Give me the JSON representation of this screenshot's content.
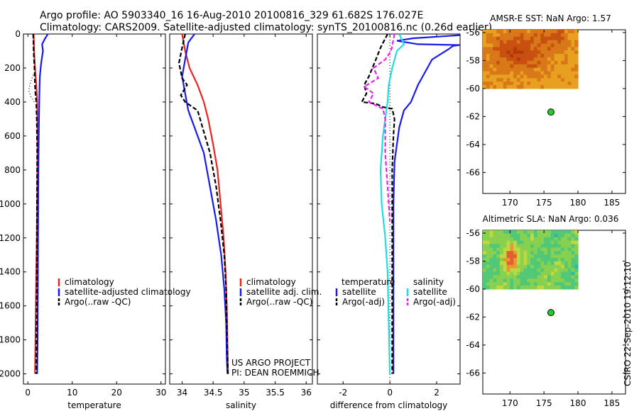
{
  "header": {
    "line1": "Argo profile: AO 5903340_16 16-Aug-2010 20100816_329 61.682S 176.027E",
    "line2": "Climatology: CARS2009. Satellite-adjusted climatology: synTS_20100816.nc (0.26d earlier)"
  },
  "colors": {
    "climatology": "#ee2222",
    "satellite": "#1a1aee",
    "argo": "#000000",
    "salinity_sat": "#22dddd",
    "salinity_argo": "#ee22ee",
    "marker": "#22cc22"
  },
  "side_label": "CSIRO 22-Sep-2010 19:12:10",
  "chart_data": [
    {
      "type": "line",
      "id": "temperature",
      "xlabel": "temperature",
      "xlim": [
        -1,
        31
      ],
      "ylim": [
        2060,
        0
      ],
      "xticks": [
        "0",
        "10",
        "20",
        "30"
      ],
      "xtick_values": [
        0,
        10,
        20,
        30
      ],
      "yticks": [
        "0",
        "200",
        "400",
        "600",
        "800",
        "1000",
        "1200",
        "1400",
        "1600",
        "1800",
        "2000"
      ],
      "ytick_values": [
        0,
        200,
        400,
        600,
        800,
        1000,
        1200,
        1400,
        1600,
        1800,
        2000
      ],
      "legend": [
        "climatology",
        "satellite-adjusted climatology",
        "Argo(..raw -QC)"
      ],
      "series": [
        {
          "name": "climatology",
          "color": "#ee2222",
          "dash": "",
          "points": [
            [
              1.3,
              0
            ],
            [
              1.4,
              100
            ],
            [
              1.6,
              200
            ],
            [
              1.9,
              300
            ],
            [
              2.1,
              400
            ],
            [
              2.2,
              600
            ],
            [
              2.15,
              800
            ],
            [
              2.1,
              1000
            ],
            [
              2.0,
              1200
            ],
            [
              1.9,
              1400
            ],
            [
              1.8,
              1600
            ],
            [
              1.7,
              1800
            ],
            [
              1.6,
              2000
            ]
          ]
        },
        {
          "name": "satellite-adjusted climatology",
          "color": "#1a1aee",
          "dash": "",
          "points": [
            [
              4.5,
              0
            ],
            [
              3.8,
              30
            ],
            [
              3.2,
              60
            ],
            [
              3.4,
              100
            ],
            [
              3.0,
              170
            ],
            [
              2.7,
              250
            ],
            [
              2.6,
              350
            ],
            [
              2.5,
              500
            ],
            [
              2.4,
              700
            ],
            [
              2.35,
              900
            ],
            [
              2.3,
              1200
            ],
            [
              2.25,
              1500
            ],
            [
              2.2,
              1800
            ],
            [
              2.1,
              2000
            ]
          ]
        },
        {
          "name": "Argo(..raw -QC)",
          "color": "#000000",
          "dash": "6,3",
          "points": [
            [
              1.2,
              0
            ],
            [
              1.3,
              100
            ],
            [
              1.5,
              200
            ],
            [
              1.6,
              300
            ],
            [
              1.7,
              350
            ],
            [
              1.9,
              400
            ],
            [
              2.0,
              500
            ],
            [
              2.1,
              700
            ],
            [
              2.05,
              1000
            ],
            [
              2.0,
              1400
            ],
            [
              1.95,
              1800
            ],
            [
              1.9,
              2000
            ]
          ]
        },
        {
          "name": "",
          "color": "#000000",
          "dash": "1,3",
          "points": [
            [
              1.2,
              240
            ],
            [
              0.4,
              300
            ],
            [
              0.2,
              335
            ],
            [
              0.7,
              370
            ],
            [
              1.4,
              400
            ]
          ]
        }
      ]
    },
    {
      "type": "line",
      "id": "salinity",
      "xlabel": "salinity",
      "xlim": [
        33.8,
        36.1
      ],
      "ylim": [
        2060,
        0
      ],
      "xticks": [
        "34",
        "34.5",
        "35",
        "35.5",
        "36"
      ],
      "xtick_values": [
        34,
        34.5,
        35,
        35.5,
        36
      ],
      "legend": [
        "climatology",
        "satellite adj. clim.",
        "Argo(..raw -QC)"
      ],
      "annotation": [
        "US ARGO PROJECT",
        "PI: DEAN ROEMMICH"
      ],
      "series": [
        {
          "name": "climatology",
          "color": "#ee2222",
          "dash": "",
          "points": [
            [
              34.0,
              0
            ],
            [
              34.05,
              100
            ],
            [
              34.12,
              200
            ],
            [
              34.25,
              300
            ],
            [
              34.35,
              400
            ],
            [
              34.42,
              500
            ],
            [
              34.5,
              650
            ],
            [
              34.57,
              800
            ],
            [
              34.62,
              1000
            ],
            [
              34.67,
              1200
            ],
            [
              34.7,
              1400
            ],
            [
              34.72,
              1600
            ],
            [
              34.73,
              1800
            ],
            [
              34.74,
              2000
            ]
          ]
        },
        {
          "name": "satellite adj. clim.",
          "color": "#1a1aee",
          "dash": "",
          "points": [
            [
              34.2,
              0
            ],
            [
              34.1,
              50
            ],
            [
              34.05,
              150
            ],
            [
              34.0,
              250
            ],
            [
              34.05,
              350
            ],
            [
              34.1,
              450
            ],
            [
              34.2,
              550
            ],
            [
              34.35,
              700
            ],
            [
              34.45,
              900
            ],
            [
              34.55,
              1100
            ],
            [
              34.63,
              1300
            ],
            [
              34.68,
              1500
            ],
            [
              34.71,
              1700
            ],
            [
              34.72,
              1900
            ],
            [
              34.73,
              2000
            ]
          ]
        },
        {
          "name": "Argo(..raw -QC)",
          "color": "#000000",
          "dash": "6,3",
          "points": [
            [
              34.05,
              0
            ],
            [
              34.0,
              80
            ],
            [
              33.95,
              170
            ],
            [
              34.0,
              260
            ],
            [
              34.08,
              300
            ],
            [
              33.98,
              360
            ],
            [
              34.05,
              400
            ],
            [
              34.25,
              450
            ],
            [
              34.33,
              550
            ],
            [
              34.45,
              700
            ],
            [
              34.55,
              900
            ],
            [
              34.62,
              1100
            ],
            [
              34.68,
              1300
            ],
            [
              34.71,
              1500
            ],
            [
              34.72,
              1700
            ],
            [
              34.73,
              1900
            ],
            [
              34.74,
              2000
            ]
          ]
        }
      ]
    },
    {
      "type": "line",
      "id": "difference",
      "xlabel": "difference from climatology",
      "xlim": [
        -3.1,
        3.0
      ],
      "ylim": [
        2060,
        0
      ],
      "xticks": [
        "-2",
        "0",
        "2"
      ],
      "xtick_values": [
        -2,
        0,
        2
      ],
      "legend_temperature_title": "temperature",
      "legend_salinity_title": "salinity",
      "legend_temperature": [
        "satellite",
        "Argo(-adj)"
      ],
      "legend_salinity": [
        "satellite",
        "Argo(-adj)"
      ],
      "zero_line": true,
      "series": [
        {
          "name": "temperature satellite",
          "color": "#1a1aee",
          "dash": "",
          "points": [
            [
              3.2,
              60
            ],
            [
              2.7,
              70
            ],
            [
              2.5,
              90
            ],
            [
              1.8,
              150
            ],
            [
              1.6,
              200
            ],
            [
              1.2,
              300
            ],
            [
              0.9,
              400
            ],
            [
              0.6,
              450
            ],
            [
              0.4,
              550
            ],
            [
              0.3,
              650
            ],
            [
              0.2,
              750
            ],
            [
              0.15,
              1000
            ],
            [
              0.15,
              1400
            ],
            [
              0.15,
              2000
            ]
          ]
        },
        {
          "name": "temperature satellite",
          "color": "#1a1aee",
          "dash": "",
          "points": [
            [
              3.2,
              5
            ],
            [
              1.0,
              25
            ],
            [
              0.3,
              40
            ],
            [
              1.2,
              60
            ],
            [
              3.0,
              65
            ]
          ]
        },
        {
          "name": "temperature Argo(-adj)",
          "color": "#000000",
          "dash": "6,3",
          "points": [
            [
              -0.1,
              0
            ],
            [
              -0.4,
              80
            ],
            [
              -0.6,
              150
            ],
            [
              -0.9,
              250
            ],
            [
              -1.1,
              300
            ],
            [
              -1.0,
              350
            ],
            [
              -1.2,
              400
            ],
            [
              -0.6,
              410
            ],
            [
              -0.3,
              430
            ],
            [
              0.1,
              440
            ],
            [
              0.2,
              500
            ],
            [
              0.15,
              600
            ],
            [
              0.1,
              800
            ],
            [
              0.1,
              1000
            ],
            [
              0.1,
              1400
            ],
            [
              0.1,
              2000
            ]
          ]
        },
        {
          "name": "salinity satellite",
          "color": "#22dddd",
          "dash": "",
          "points": [
            [
              0.4,
              0
            ],
            [
              0.6,
              60
            ],
            [
              0.3,
              100
            ],
            [
              0.1,
              200
            ],
            [
              -0.05,
              300
            ],
            [
              -0.1,
              400
            ],
            [
              -0.2,
              500
            ],
            [
              -0.3,
              600
            ],
            [
              -0.4,
              800
            ],
            [
              -0.35,
              1000
            ],
            [
              -0.2,
              1200
            ],
            [
              -0.1,
              1400
            ],
            [
              -0.05,
              1700
            ],
            [
              0.0,
              2000
            ]
          ]
        },
        {
          "name": "salinity Argo(-adj)",
          "color": "#ee22ee",
          "dash": "6,3",
          "points": [
            [
              0.2,
              0
            ],
            [
              0.05,
              100
            ],
            [
              -0.2,
              150
            ],
            [
              -0.7,
              200
            ],
            [
              -0.5,
              260
            ],
            [
              -1.1,
              310
            ],
            [
              -0.7,
              350
            ],
            [
              -0.9,
              400
            ],
            [
              -0.3,
              440
            ],
            [
              -0.2,
              500
            ],
            [
              -0.2,
              600
            ],
            [
              -0.2,
              700
            ],
            [
              -0.15,
              800
            ],
            [
              -0.1,
              900
            ],
            [
              -0.05,
              1000
            ],
            [
              0.0,
              1100
            ]
          ]
        }
      ]
    },
    {
      "type": "heatmap",
      "id": "amsr_sst",
      "title": "AMSR-E SST: NaN Argo: 1.57",
      "xlim": [
        166,
        187
      ],
      "ylim": [
        -67.5,
        -55.8
      ],
      "xticks": [
        "170",
        "175",
        "180",
        "185"
      ],
      "xtick_values": [
        170,
        175,
        180,
        185
      ],
      "yticks": [
        "-56",
        "-58",
        "-60",
        "-62",
        "-64",
        "-66"
      ],
      "ytick_values": [
        -56,
        -58,
        -60,
        -62,
        -64,
        -66
      ],
      "grid_extent": {
        "lon": [
          166,
          180
        ],
        "lat": [
          -60,
          -55.8
        ]
      },
      "palette": [
        "#f0c030",
        "#e8a020",
        "#d87818",
        "#c85010",
        "#b83a08"
      ],
      "float_position": {
        "lon": 176.027,
        "lat": -61.682
      }
    },
    {
      "type": "heatmap",
      "id": "altimetric_sla",
      "title": "Altimetric SLA: NaN Argo: 0.036",
      "xlim": [
        166,
        187
      ],
      "ylim": [
        -67.5,
        -55.8
      ],
      "xticks": [
        "170",
        "175",
        "180",
        "185"
      ],
      "xtick_values": [
        170,
        175,
        180,
        185
      ],
      "yticks": [
        "-56",
        "-58",
        "-60",
        "-62",
        "-64",
        "-66"
      ],
      "ytick_values": [
        -56,
        -58,
        -60,
        -62,
        -64,
        -66
      ],
      "grid_extent": {
        "lon": [
          166,
          180
        ],
        "lat": [
          -60,
          -55.8
        ]
      },
      "palette": [
        "#30b8a0",
        "#50c878",
        "#88d050",
        "#c0d840",
        "#e89830",
        "#e06030"
      ],
      "float_position": {
        "lon": 176.027,
        "lat": -61.682
      }
    }
  ]
}
